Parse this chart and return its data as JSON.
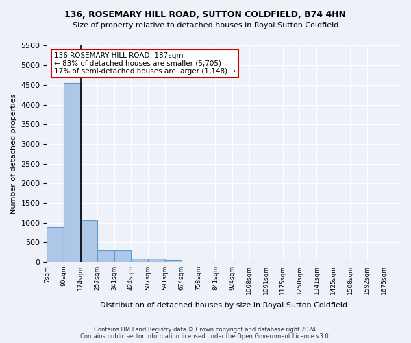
{
  "title_line1": "136, ROSEMARY HILL ROAD, SUTTON COLDFIELD, B74 4HN",
  "title_line2": "Size of property relative to detached houses in Royal Sutton Coldfield",
  "xlabel": "Distribution of detached houses by size in Royal Sutton Coldfield",
  "ylabel": "Number of detached properties",
  "footnote": "Contains HM Land Registry data © Crown copyright and database right 2024.\nContains public sector information licensed under the Open Government Licence v3.0.",
  "bin_labels": [
    "7sqm",
    "90sqm",
    "174sqm",
    "257sqm",
    "341sqm",
    "424sqm",
    "507sqm",
    "591sqm",
    "674sqm",
    "758sqm",
    "841sqm",
    "924sqm",
    "1008sqm",
    "1091sqm",
    "1175sqm",
    "1258sqm",
    "1341sqm",
    "1425sqm",
    "1508sqm",
    "1592sqm",
    "1675sqm"
  ],
  "bar_values": [
    880,
    4550,
    1060,
    290,
    290,
    80,
    80,
    55,
    0,
    0,
    0,
    0,
    0,
    0,
    0,
    0,
    0,
    0,
    0,
    0,
    0
  ],
  "bar_color": "#aec6e8",
  "bar_edge_color": "#5a9fd4",
  "property_line_x": 2,
  "annotation_line1": "136 ROSEMARY HILL ROAD: 187sqm",
  "annotation_line2": "← 83% of detached houses are smaller (5,705)",
  "annotation_line3": "17% of semi-detached houses are larger (1,148) →",
  "annotation_box_color": "#ffffff",
  "annotation_box_edge": "#cc0000",
  "ylim": [
    0,
    5500
  ],
  "yticks": [
    0,
    500,
    1000,
    1500,
    2000,
    2500,
    3000,
    3500,
    4000,
    4500,
    5000,
    5500
  ],
  "background_color": "#eef2f8",
  "grid_color": "#ffffff",
  "vline_color": "#000000"
}
